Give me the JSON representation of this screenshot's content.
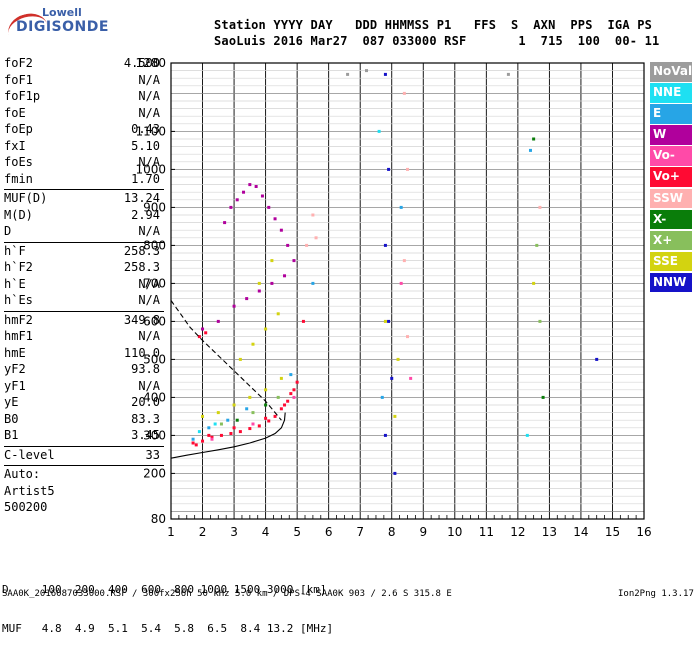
{
  "logo": {
    "line1": "Lowell",
    "line2": "DIGISONDE"
  },
  "header": {
    "row1": "Station YYYY DAY   DDD HHMMSS P1   FFS  S  AXN  PPS  IGA PS",
    "row2": "SaoLuis 2016 Mar27  087 033000 RSF       1  715  100  00- 11"
  },
  "params": [
    {
      "name": "foF2",
      "value": "4.500"
    },
    {
      "name": "foF1",
      "value": "N/A"
    },
    {
      "name": "foF1p",
      "value": "N/A"
    },
    {
      "name": "foE",
      "value": "N/A"
    },
    {
      "name": "foEp",
      "value": "0.43"
    },
    {
      "name": "fxI",
      "value": "5.10"
    },
    {
      "name": "foEs",
      "value": "N/A"
    },
    {
      "name": "fmin",
      "value": "1.70"
    },
    {
      "sep": true
    },
    {
      "name": "MUF(D)",
      "value": "13.24"
    },
    {
      "name": "M(D)",
      "value": "2.94"
    },
    {
      "name": "D",
      "value": "N/A"
    },
    {
      "sep": true
    },
    {
      "name": "h`F",
      "value": "258.3"
    },
    {
      "name": "h`F2",
      "value": "258.3"
    },
    {
      "name": "h`E",
      "value": "N/A"
    },
    {
      "name": "h`Es",
      "value": "N/A"
    },
    {
      "sep": true
    },
    {
      "name": "hmF2",
      "value": "349.8"
    },
    {
      "name": "hmF1",
      "value": "N/A"
    },
    {
      "name": "hmE",
      "value": "110.0"
    },
    {
      "name": "yF2",
      "value": "93.8"
    },
    {
      "name": "yF1",
      "value": "N/A"
    },
    {
      "name": "yE",
      "value": "20.0"
    },
    {
      "name": "B0",
      "value": "83.3"
    },
    {
      "name": "B1",
      "value": "3.45"
    },
    {
      "sep": true
    },
    {
      "name": "C-level",
      "value": "33"
    },
    {
      "sep": true
    },
    {
      "name": "Auto:",
      "value": ""
    },
    {
      "name": "Artist5",
      "value": ""
    },
    {
      "name": "500200",
      "value": ""
    }
  ],
  "legend": [
    {
      "label": "NoVal",
      "color": "#9c9c9c"
    },
    {
      "label": "NNE",
      "color": "#1ee0f2"
    },
    {
      "label": "E",
      "color": "#27a5e6"
    },
    {
      "label": "W",
      "color": "#b0009c"
    },
    {
      "label": "Vo-",
      "color": "#ff4aa8"
    },
    {
      "label": "Vo+",
      "color": "#ff0a33"
    },
    {
      "label": "SSW",
      "color": "#ffb0b0"
    },
    {
      "label": "X-",
      "color": "#0a7d0a"
    },
    {
      "label": "X+",
      "color": "#88bf5c"
    },
    {
      "label": "SSE",
      "color": "#d3d310"
    },
    {
      "label": "NNW",
      "color": "#1512c8"
    }
  ],
  "bottom": {
    "row1": "D     100  200  400  600  800 1000 1500 3000 [km]",
    "row2": "MUF   4.8  4.9  5.1  5.4  5.8  6.5  8.4 13.2 [MHz]"
  },
  "footer": {
    "left": "SAA0K_2016087033000.RSF / 300fx256h 50 kHz 5.0 km / DPS-4 SAA0K 903 / 2.6 S 315.8 E",
    "right": "Ion2Png 1.3.17"
  },
  "chart_data": {
    "type": "scatter",
    "title": "",
    "xlabel": "",
    "ylabel": "",
    "xlim": [
      1,
      16
    ],
    "ylim": [
      80,
      1280
    ],
    "x_ticks": [
      1,
      2,
      3,
      4,
      5,
      6,
      7,
      8,
      9,
      10,
      11,
      12,
      13,
      14,
      15,
      16
    ],
    "y_ticks": [
      80,
      200,
      300,
      400,
      500,
      600,
      700,
      800,
      900,
      1000,
      1100,
      1280
    ],
    "grid": true,
    "series": [
      {
        "name": "Vo+",
        "color": "#ff0a33",
        "points": [
          [
            1.8,
            275
          ],
          [
            2.0,
            285
          ],
          [
            2.3,
            295
          ],
          [
            2.6,
            300
          ],
          [
            2.9,
            305
          ],
          [
            3.2,
            310
          ],
          [
            3.5,
            318
          ],
          [
            3.8,
            325
          ],
          [
            4.1,
            338
          ],
          [
            4.3,
            350
          ],
          [
            4.5,
            370
          ],
          [
            4.7,
            390
          ],
          [
            4.9,
            420
          ],
          [
            1.9,
            560
          ],
          [
            2.1,
            570
          ],
          [
            1.7,
            280
          ],
          [
            2.2,
            300
          ],
          [
            3.0,
            320
          ],
          [
            4.0,
            345
          ],
          [
            4.6,
            380
          ],
          [
            4.8,
            410
          ],
          [
            5.0,
            440
          ],
          [
            5.2,
            600
          ]
        ]
      },
      {
        "name": "W",
        "color": "#b0009c",
        "points": [
          [
            2.7,
            860
          ],
          [
            2.9,
            900
          ],
          [
            3.1,
            920
          ],
          [
            3.3,
            940
          ],
          [
            3.5,
            960
          ],
          [
            3.7,
            955
          ],
          [
            3.9,
            930
          ],
          [
            4.1,
            900
          ],
          [
            4.3,
            870
          ],
          [
            4.5,
            840
          ],
          [
            4.7,
            800
          ],
          [
            4.9,
            760
          ],
          [
            3.0,
            640
          ],
          [
            3.4,
            660
          ],
          [
            3.8,
            680
          ],
          [
            4.2,
            700
          ],
          [
            4.6,
            720
          ],
          [
            2.0,
            580
          ],
          [
            2.5,
            600
          ]
        ]
      },
      {
        "name": "SSE",
        "color": "#d3d310",
        "points": [
          [
            2.0,
            350
          ],
          [
            2.5,
            360
          ],
          [
            3.0,
            380
          ],
          [
            3.5,
            400
          ],
          [
            4.0,
            420
          ],
          [
            4.5,
            450
          ],
          [
            3.2,
            500
          ],
          [
            3.6,
            540
          ],
          [
            4.0,
            580
          ],
          [
            4.4,
            620
          ],
          [
            3.8,
            700
          ],
          [
            4.2,
            760
          ],
          [
            7.8,
            600
          ],
          [
            8.1,
            350
          ],
          [
            8.2,
            500
          ],
          [
            12.5,
            700
          ]
        ]
      },
      {
        "name": "E",
        "color": "#27a5e6",
        "points": [
          [
            1.7,
            290
          ],
          [
            2.2,
            320
          ],
          [
            2.8,
            340
          ],
          [
            3.4,
            370
          ],
          [
            4.8,
            460
          ],
          [
            5.5,
            700
          ],
          [
            7.7,
            400
          ],
          [
            8.3,
            900
          ],
          [
            12.4,
            1050
          ]
        ]
      },
      {
        "name": "NNW",
        "color": "#1512c8",
        "points": [
          [
            7.8,
            1250
          ],
          [
            7.9,
            1000
          ],
          [
            7.8,
            800
          ],
          [
            7.9,
            600
          ],
          [
            8.0,
            450
          ],
          [
            7.8,
            300
          ],
          [
            8.1,
            200
          ],
          [
            14.5,
            500
          ]
        ]
      },
      {
        "name": "SSW",
        "color": "#ffb0b0",
        "points": [
          [
            5.5,
            880
          ],
          [
            5.3,
            800
          ],
          [
            5.6,
            820
          ],
          [
            8.4,
            1200
          ],
          [
            8.5,
            1000
          ],
          [
            8.4,
            760
          ],
          [
            8.5,
            560
          ],
          [
            12.7,
            900
          ]
        ]
      },
      {
        "name": "X+",
        "color": "#88bf5c",
        "points": [
          [
            2.6,
            330
          ],
          [
            3.6,
            360
          ],
          [
            4.4,
            400
          ],
          [
            12.6,
            800
          ],
          [
            12.7,
            600
          ]
        ]
      },
      {
        "name": "X-",
        "color": "#0a7d0a",
        "points": [
          [
            3.1,
            340
          ],
          [
            4.0,
            380
          ],
          [
            12.5,
            1080
          ],
          [
            12.8,
            400
          ]
        ]
      },
      {
        "name": "NNE",
        "color": "#1ee0f2",
        "points": [
          [
            1.9,
            310
          ],
          [
            2.4,
            330
          ],
          [
            7.6,
            1100
          ],
          [
            12.3,
            300
          ]
        ]
      },
      {
        "name": "Vo-",
        "color": "#ff4aa8",
        "points": [
          [
            2.3,
            290
          ],
          [
            3.6,
            330
          ],
          [
            4.9,
            400
          ],
          [
            8.3,
            700
          ],
          [
            8.6,
            450
          ]
        ]
      },
      {
        "name": "NoVal",
        "color": "#9c9c9c",
        "points": [
          [
            6.6,
            1250
          ],
          [
            7.2,
            1260
          ],
          [
            11.7,
            1250
          ]
        ]
      }
    ],
    "curves": [
      {
        "kind": "profile_solid",
        "points": [
          [
            1.0,
            240
          ],
          [
            1.5,
            248
          ],
          [
            2.0,
            255
          ],
          [
            2.5,
            262
          ],
          [
            3.0,
            270
          ],
          [
            3.5,
            280
          ],
          [
            4.0,
            293
          ],
          [
            4.3,
            305
          ],
          [
            4.5,
            320
          ],
          [
            4.6,
            340
          ],
          [
            4.62,
            360
          ]
        ]
      },
      {
        "kind": "profile_dashed",
        "points": [
          [
            1.0,
            655
          ],
          [
            1.3,
            620
          ],
          [
            1.6,
            585
          ],
          [
            2.0,
            550
          ],
          [
            2.5,
            510
          ],
          [
            3.0,
            470
          ],
          [
            3.5,
            430
          ],
          [
            4.0,
            390
          ],
          [
            4.3,
            360
          ],
          [
            4.5,
            340
          ]
        ]
      }
    ]
  }
}
